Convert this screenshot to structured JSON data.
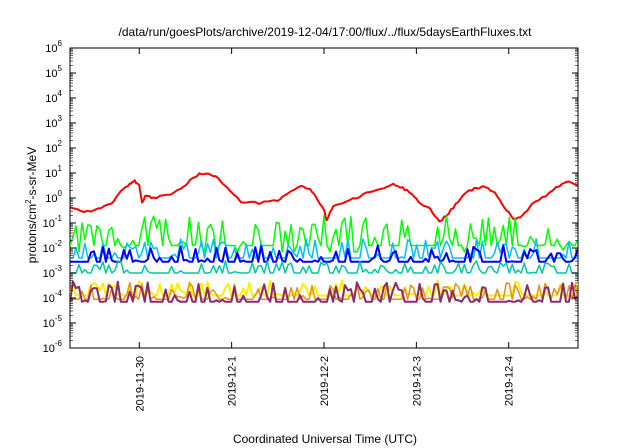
{
  "chart_data": {
    "type": "line",
    "title": "/data/run/goesPlots/archive/2019-12-04/17:00/flux/../flux/5daysEarthFluxes.txt",
    "xlabel": "Coordinated Universal Time (UTC)",
    "ylabel": {
      "prefix": "protons/cm",
      "sup": "2",
      "suffix": "-s-sr-MeV"
    },
    "y_scale": "log",
    "ylim_exp": [
      -6,
      6
    ],
    "y_ticks": [
      {
        "base": "10",
        "exp": "-6"
      },
      {
        "base": "10",
        "exp": "-5"
      },
      {
        "base": "10",
        "exp": "-4"
      },
      {
        "base": "10",
        "exp": "-3"
      },
      {
        "base": "10",
        "exp": "-2"
      },
      {
        "base": "10",
        "exp": "-1"
      },
      {
        "base": "10",
        "exp": "0"
      },
      {
        "base": "10",
        "exp": "1"
      },
      {
        "base": "10",
        "exp": "2"
      },
      {
        "base": "10",
        "exp": "3"
      },
      {
        "base": "10",
        "exp": "4"
      },
      {
        "base": "10",
        "exp": "5"
      },
      {
        "base": "10",
        "exp": "6"
      }
    ],
    "x_range_days": [
      -0.75,
      4.75
    ],
    "x_ticks": [
      {
        "label": "2019-11-30",
        "day": 0
      },
      {
        "label": "2019-12-1",
        "day": 1
      },
      {
        "label": "2019-12-2",
        "day": 2
      },
      {
        "label": "2019-12-3",
        "day": 3
      },
      {
        "label": "2019-12-4",
        "day": 4
      }
    ],
    "grid": false,
    "series": [
      {
        "color": "#ff0000",
        "width": 2,
        "baseline_log": 0.0,
        "spike_amp": 0,
        "points_log": [
          [
            -0.75,
            -0.35
          ],
          [
            -0.6,
            -0.55
          ],
          [
            -0.45,
            -0.45
          ],
          [
            -0.3,
            -0.2
          ],
          [
            -0.2,
            0.25
          ],
          [
            -0.1,
            0.55
          ],
          [
            -0.05,
            0.7
          ],
          [
            0.0,
            0.5
          ],
          [
            0.03,
            -0.2
          ],
          [
            0.07,
            0.1
          ],
          [
            0.15,
            0.0
          ],
          [
            0.3,
            0.1
          ],
          [
            0.45,
            0.35
          ],
          [
            0.55,
            0.7
          ],
          [
            0.65,
            0.95
          ],
          [
            0.75,
            1.0
          ],
          [
            0.85,
            0.8
          ],
          [
            0.95,
            0.4
          ],
          [
            1.1,
            -0.15
          ],
          [
            1.3,
            -0.2
          ],
          [
            1.5,
            -0.1
          ],
          [
            1.6,
            0.15
          ],
          [
            1.75,
            0.5
          ],
          [
            1.85,
            0.35
          ],
          [
            1.92,
            0.0
          ],
          [
            2.0,
            -0.5
          ],
          [
            2.03,
            -0.9
          ],
          [
            2.1,
            -0.3
          ],
          [
            2.2,
            -0.2
          ],
          [
            2.35,
            0.0
          ],
          [
            2.5,
            0.25
          ],
          [
            2.65,
            0.4
          ],
          [
            2.75,
            0.55
          ],
          [
            2.85,
            0.4
          ],
          [
            2.95,
            0.2
          ],
          [
            3.05,
            -0.25
          ],
          [
            3.15,
            -0.45
          ],
          [
            3.25,
            -0.95
          ],
          [
            3.35,
            -0.6
          ],
          [
            3.45,
            -0.15
          ],
          [
            3.55,
            0.25
          ],
          [
            3.65,
            0.4
          ],
          [
            3.75,
            0.45
          ],
          [
            3.85,
            0.2
          ],
          [
            3.95,
            -0.35
          ],
          [
            4.05,
            -0.85
          ],
          [
            4.15,
            -0.7
          ],
          [
            4.25,
            -0.25
          ],
          [
            4.4,
            0.1
          ],
          [
            4.55,
            0.5
          ],
          [
            4.65,
            0.65
          ],
          [
            4.75,
            0.5
          ]
        ]
      },
      {
        "color": "#00ff00",
        "width": 1.5,
        "baseline_log": -1.9,
        "spike_amp": 1.1,
        "seed": 7,
        "step_pattern": true
      },
      {
        "color": "#00bfff",
        "width": 1.5,
        "baseline_log": -2.4,
        "spike_amp": 0.7,
        "seed": 13
      },
      {
        "color": "#0000ff",
        "width": 2,
        "baseline_log": -2.55,
        "spike_amp": 0.6,
        "seed": 21
      },
      {
        "color": "#00c8a0",
        "width": 1.5,
        "baseline_log": -3.0,
        "spike_amp": 0.45,
        "seed": 33
      },
      {
        "color": "#ffee00",
        "width": 2,
        "baseline_log": -3.9,
        "spike_amp": 0.55,
        "seed": 41
      },
      {
        "color": "#e89018",
        "width": 1.5,
        "baseline_log": -4.05,
        "spike_amp": 0.6,
        "seed": 55
      },
      {
        "color": "#8b2a6b",
        "width": 2,
        "baseline_log": -4.15,
        "spike_amp": 0.75,
        "seed": 63
      }
    ]
  }
}
